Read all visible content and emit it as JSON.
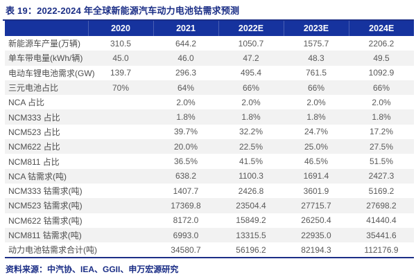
{
  "title": "表 19：2022-2024 年全球新能源汽车动力电池钴需求预测",
  "source": "资料来源：中汽协、IEA、GGII、申万宏源研究",
  "colors": {
    "header_bg": "#16339e",
    "title_text": "#1b2e86",
    "rule": "#1b2e86",
    "stripe": "#f2f2f2",
    "cell_text": "#595959"
  },
  "table": {
    "columns": [
      "",
      "2020",
      "2021",
      "2022E",
      "2023E",
      "2024E"
    ],
    "rows": [
      {
        "label": "新能源车产量(万辆)",
        "values": [
          "310.5",
          "644.2",
          "1050.7",
          "1575.7",
          "2206.2"
        ]
      },
      {
        "label": "单车带电量(kWh/辆)",
        "values": [
          "45.0",
          "46.0",
          "47.2",
          "48.3",
          "49.5"
        ]
      },
      {
        "label": "电动车锂电池需求(GW)",
        "values": [
          "139.7",
          "296.3",
          "495.4",
          "761.5",
          "1092.9"
        ]
      },
      {
        "label": "三元电池占比",
        "values": [
          "70%",
          "64%",
          "66%",
          "66%",
          "66%"
        ]
      },
      {
        "label": "NCA 占比",
        "values": [
          "",
          "2.0%",
          "2.0%",
          "2.0%",
          "2.0%"
        ]
      },
      {
        "label": "NCM333 占比",
        "values": [
          "",
          "1.8%",
          "1.8%",
          "1.8%",
          "1.8%"
        ]
      },
      {
        "label": "NCM523 占比",
        "values": [
          "",
          "39.7%",
          "32.2%",
          "24.7%",
          "17.2%"
        ]
      },
      {
        "label": "NCM622 占比",
        "values": [
          "",
          "20.0%",
          "22.5%",
          "25.0%",
          "27.5%"
        ]
      },
      {
        "label": "NCM811 占比",
        "values": [
          "",
          "36.5%",
          "41.5%",
          "46.5%",
          "51.5%"
        ]
      },
      {
        "label": "NCA 钴需求(吨)",
        "values": [
          "",
          "638.2",
          "1100.3",
          "1691.4",
          "2427.3"
        ]
      },
      {
        "label": "NCM333 钴需求(吨)",
        "values": [
          "",
          "1407.7",
          "2426.8",
          "3601.9",
          "5169.2"
        ]
      },
      {
        "label": "NCM523 钴需求(吨)",
        "values": [
          "",
          "17369.8",
          "23504.4",
          "27715.7",
          "27698.2"
        ]
      },
      {
        "label": "NCM622 钴需求(吨)",
        "values": [
          "",
          "8172.0",
          "15849.2",
          "26250.4",
          "41440.4"
        ]
      },
      {
        "label": "NCM811 钴需求(吨)",
        "values": [
          "",
          "6993.0",
          "13315.5",
          "22935.0",
          "35441.6"
        ]
      },
      {
        "label": "动力电池钴需求合计(吨)",
        "values": [
          "",
          "34580.7",
          "56196.2",
          "82194.3",
          "112176.9"
        ]
      }
    ]
  }
}
